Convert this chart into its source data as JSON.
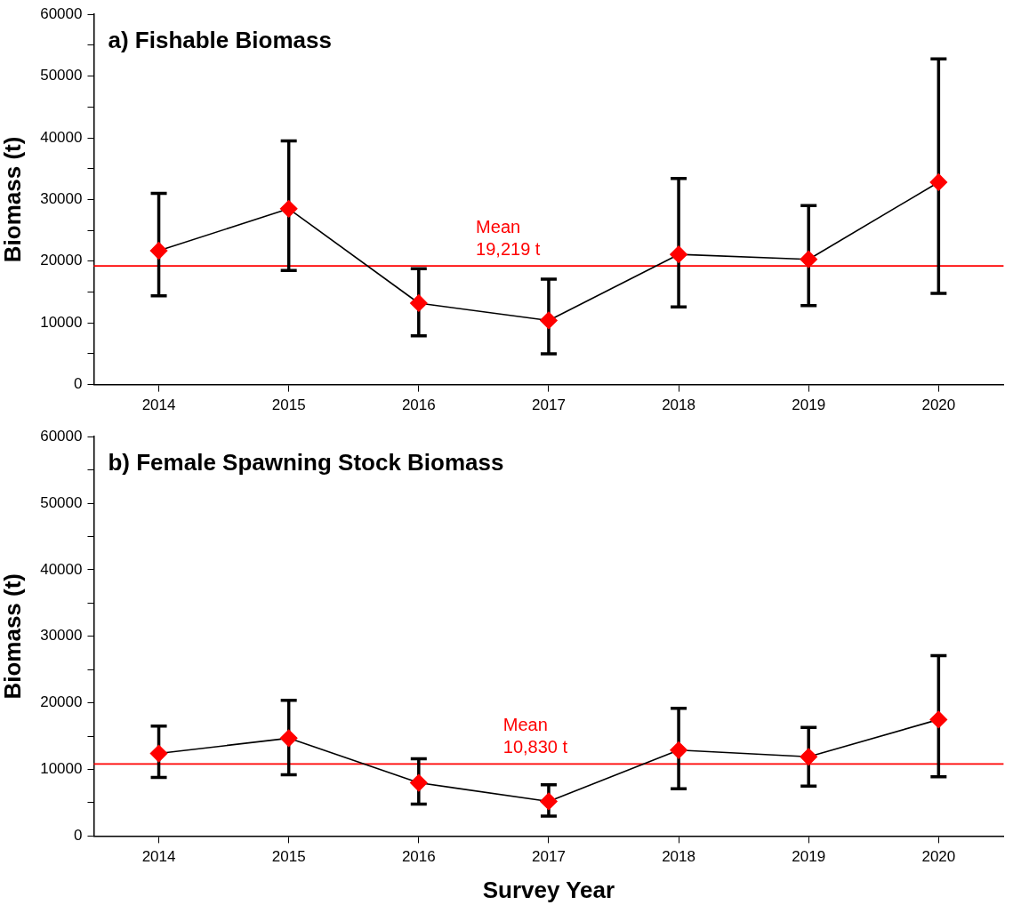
{
  "chart_data": [
    {
      "type": "line",
      "title": "a) Fishable Biomass",
      "ylabel": "Biomass (t)",
      "categories": [
        "2014",
        "2015",
        "2016",
        "2017",
        "2018",
        "2019",
        "2020"
      ],
      "series": [
        {
          "color": "#000000",
          "colors": [
            "#ff0000",
            "#ff0000",
            "#ff0000",
            "#ff0000",
            "#ff0000",
            "#ff0000",
            "#ff0000"
          ],
          "values": [
            21700,
            28500,
            13200,
            10400,
            21100,
            20300,
            32800
          ],
          "errors": [
            [
              14400,
              31000
            ],
            [
              18500,
              39500
            ],
            [
              7900,
              18800
            ],
            [
              5000,
              17100
            ],
            [
              12600,
              33400
            ],
            [
              12800,
              29000
            ],
            [
              14800,
              52800
            ]
          ]
        }
      ],
      "ylim": [
        0,
        60000
      ],
      "yticks": [
        0,
        {
          "value": 5000,
          "label": null
        },
        10000,
        {
          "value": 15000,
          "label": null
        },
        20000,
        {
          "value": 25000,
          "label": null
        },
        30000,
        {
          "value": 35000,
          "label": null
        },
        40000,
        {
          "value": 45000,
          "label": null
        },
        50000,
        {
          "value": 55000,
          "label": null
        },
        60000
      ],
      "ref_lines": [
        {
          "axis": "y",
          "value": 19219,
          "label": "Mean\n19,219 t",
          "color": "#ff0000"
        }
      ],
      "marker": "diamond",
      "grid": false,
      "legend": false
    },
    {
      "type": "line",
      "title": "b) Female Spawning Stock Biomass",
      "ylabel": "Biomass (t)",
      "xlabel": "Survey Year",
      "categories": [
        "2014",
        "2015",
        "2016",
        "2017",
        "2018",
        "2019",
        "2020"
      ],
      "series": [
        {
          "color": "#000000",
          "colors": [
            "#ff0000",
            "#ff0000",
            "#ff0000",
            "#ff0000",
            "#ff0000",
            "#ff0000",
            "#ff0000"
          ],
          "values": [
            12400,
            14700,
            8000,
            5200,
            12900,
            11900,
            17500
          ],
          "errors": [
            [
              8800,
              16500
            ],
            [
              9200,
              20400
            ],
            [
              4800,
              11600
            ],
            [
              3000,
              7700
            ],
            [
              7100,
              19200
            ],
            [
              7500,
              16300
            ],
            [
              8900,
              27100
            ]
          ]
        }
      ],
      "ylim": [
        0,
        60000
      ],
      "yticks": [
        0,
        {
          "value": 5000,
          "label": null
        },
        10000,
        {
          "value": 15000,
          "label": null
        },
        20000,
        {
          "value": 25000,
          "label": null
        },
        30000,
        {
          "value": 35000,
          "label": null
        },
        40000,
        {
          "value": 45000,
          "label": null
        },
        50000,
        {
          "value": 55000,
          "label": null
        },
        60000
      ],
      "ref_lines": [
        {
          "axis": "y",
          "value": 10830,
          "label": "Mean\n10,830 t",
          "color": "#ff0000"
        }
      ],
      "marker": "diamond",
      "grid": false,
      "legend": false
    }
  ]
}
